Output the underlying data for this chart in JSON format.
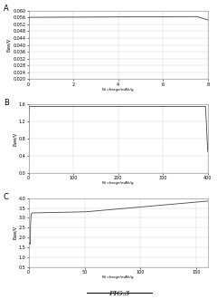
{
  "figure_label": "FIG.3",
  "panels": [
    {
      "label": "A",
      "ylabel": "Ewe/V",
      "xlabel": "Ni charge/mAh/g",
      "xlim": [
        0,
        8
      ],
      "ylim": [
        0.02,
        0.06
      ],
      "yticks": [
        0.02,
        0.024,
        0.028,
        0.032,
        0.036,
        0.04,
        0.044,
        0.048,
        0.052,
        0.056,
        0.06
      ],
      "xticks": [
        0,
        2,
        4,
        6,
        8
      ],
      "curve_type": "A"
    },
    {
      "label": "B",
      "ylabel": "Ewe/V",
      "xlabel": "Ni charge/mAh/g",
      "xlim": [
        0,
        400
      ],
      "ylim": [
        0,
        1.6
      ],
      "yticks": [
        0,
        0.4,
        0.8,
        1.2,
        1.6
      ],
      "xticks": [
        0,
        100,
        200,
        300,
        400
      ],
      "curve_type": "B"
    },
    {
      "label": "C",
      "ylabel": "Ewe/V",
      "xlabel": "Ni charge/mAh/g",
      "xlim": [
        0,
        160
      ],
      "ylim": [
        0.5,
        4.0
      ],
      "yticks": [
        0.5,
        1.0,
        1.5,
        2.0,
        2.5,
        3.0,
        3.5,
        4.0
      ],
      "xticks": [
        0,
        50,
        100,
        150
      ],
      "curve_type": "C"
    }
  ],
  "line_color": "#444444",
  "line_width": 0.6,
  "bg_color": "#ffffff",
  "grid_color": "#d0d0d0"
}
